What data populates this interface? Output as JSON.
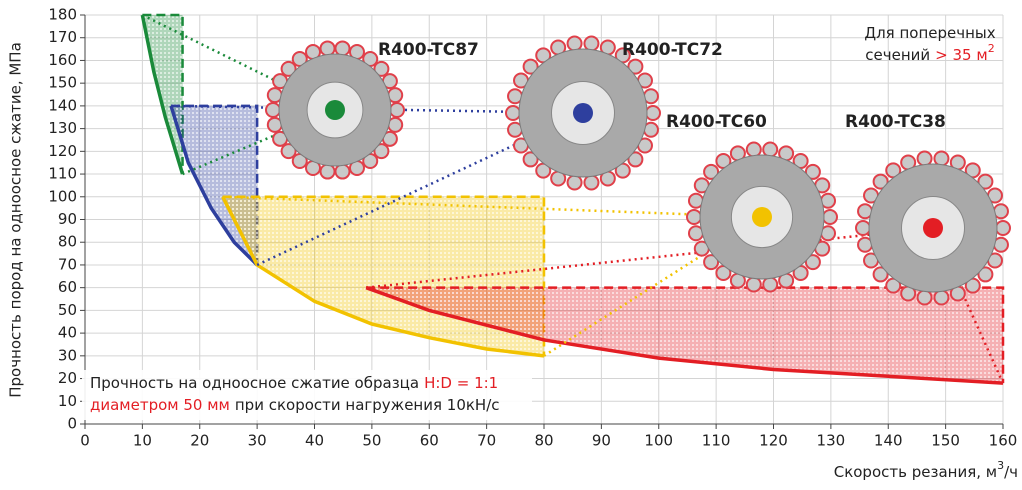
{
  "chart_data": {
    "type": "area-range",
    "xlabel": [
      "Скорость резания, м",
      "3",
      "/ч"
    ],
    "ylabel": "Прочность пород на одноосное сжатие, МПа",
    "xlim": [
      0,
      160
    ],
    "ylim": [
      0,
      180
    ],
    "xticks": [
      0,
      10,
      20,
      30,
      40,
      50,
      60,
      70,
      80,
      90,
      100,
      110,
      120,
      130,
      140,
      150,
      160
    ],
    "yticks": [
      0,
      10,
      20,
      30,
      40,
      50,
      60,
      70,
      80,
      90,
      100,
      110,
      120,
      130,
      140,
      150,
      160,
      170,
      180
    ],
    "grid": true,
    "series": [
      {
        "name": "R400-TC87",
        "color": "#1a8a3a",
        "x": [
          10,
          12,
          14,
          17
        ],
        "values": [
          180,
          155,
          135,
          110
        ]
      },
      {
        "name": "R400-TC72",
        "color": "#2e3f9e",
        "x": [
          15,
          18,
          22,
          26,
          30
        ],
        "values": [
          140,
          115,
          95,
          80,
          70
        ]
      },
      {
        "name": "R400-TC60",
        "color": "#f2c200",
        "x": [
          24,
          30,
          40,
          50,
          60,
          70,
          80
        ],
        "values": [
          100,
          70,
          54,
          44,
          38,
          33,
          30
        ]
      },
      {
        "name": "R400-TC38",
        "color": "#e31e24",
        "x": [
          49,
          60,
          80,
          100,
          120,
          140,
          160
        ],
        "values": [
          60,
          50,
          37,
          29,
          24,
          21,
          18
        ]
      }
    ],
    "corner_note": [
      [
        {
          "text": "Для поперечных"
        }
      ],
      [
        {
          "text": "сечений"
        },
        {
          "text": "> 35 м",
          "color": "#e31e24"
        },
        {
          "text": "2",
          "color": "#e31e24",
          "sup": true
        }
      ]
    ],
    "bottom_note": [
      [
        {
          "text": "Прочность на одноосное сжатие образца"
        },
        {
          "text": "H:D = 1:1",
          "color": "#e31e24"
        }
      ],
      [
        {
          "text": "диаметром 50 мм",
          "color": "#e31e24"
        },
        {
          "text": "при скорости нагружения 10кН/с"
        }
      ]
    ]
  }
}
